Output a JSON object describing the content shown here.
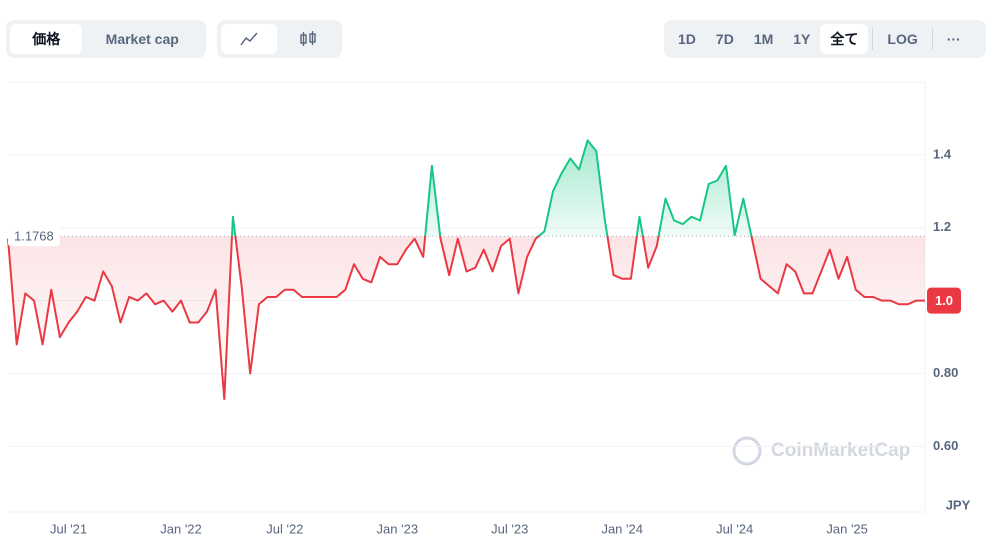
{
  "toolbar": {
    "metric_tabs": [
      "価格",
      "Market cap"
    ],
    "range_tabs": [
      "1D",
      "7D",
      "1M",
      "1Y",
      "全て"
    ],
    "log": "LOG",
    "more": "···"
  },
  "chart_data": {
    "type": "line",
    "y_axis_label": "JPY",
    "watermark": "CoinMarketCap",
    "categories": [
      "",
      null,
      null,
      null,
      null,
      null,
      null,
      "Jul '21",
      null,
      null,
      null,
      null,
      null,
      null,
      null,
      null,
      null,
      null,
      null,
      null,
      "Jan '22",
      null,
      null,
      null,
      null,
      null,
      null,
      null,
      null,
      null,
      null,
      null,
      "Jul '22",
      null,
      null,
      null,
      null,
      null,
      null,
      null,
      null,
      null,
      null,
      null,
      null,
      "Jan '23",
      null,
      null,
      null,
      null,
      null,
      null,
      null,
      null,
      null,
      null,
      null,
      null,
      "Jul '23",
      null,
      null,
      null,
      null,
      null,
      null,
      null,
      null,
      null,
      null,
      null,
      null,
      "Jan '24",
      null,
      null,
      null,
      null,
      null,
      null,
      null,
      null,
      null,
      null,
      null,
      null,
      "Jul '24",
      null,
      null,
      null,
      null,
      null,
      null,
      null,
      null,
      null,
      null,
      null,
      null,
      "Jan '25",
      null,
      null,
      null,
      null,
      null,
      null,
      null,
      null,
      null
    ],
    "series": [
      {
        "name": "Price",
        "values": [
          1.17,
          0.88,
          1.02,
          1.0,
          0.88,
          1.03,
          0.9,
          0.94,
          0.97,
          1.01,
          1.0,
          1.08,
          1.04,
          0.94,
          1.01,
          1.0,
          1.02,
          0.99,
          1.0,
          0.97,
          1.0,
          0.94,
          0.94,
          0.97,
          1.03,
          0.73,
          1.23,
          1.04,
          0.8,
          0.99,
          1.01,
          1.01,
          1.03,
          1.03,
          1.01,
          1.01,
          1.01,
          1.01,
          1.01,
          1.03,
          1.1,
          1.06,
          1.05,
          1.12,
          1.1,
          1.1,
          1.14,
          1.17,
          1.12,
          1.37,
          1.17,
          1.07,
          1.17,
          1.08,
          1.09,
          1.14,
          1.08,
          1.15,
          1.17,
          1.02,
          1.12,
          1.17,
          1.19,
          1.3,
          1.35,
          1.39,
          1.36,
          1.44,
          1.41,
          1.22,
          1.07,
          1.06,
          1.06,
          1.23,
          1.09,
          1.15,
          1.28,
          1.22,
          1.21,
          1.23,
          1.22,
          1.32,
          1.33,
          1.37,
          1.18,
          1.28,
          1.17,
          1.06,
          1.04,
          1.02,
          1.1,
          1.08,
          1.02,
          1.02,
          1.08,
          1.14,
          1.06,
          1.12,
          1.03,
          1.01,
          1.01,
          1.0,
          1.0,
          0.99,
          0.99,
          1.0,
          1.0
        ]
      }
    ],
    "baseline": 1.1768,
    "current_price": {
      "value": 1.0,
      "label": "1.0"
    },
    "up_color": "#16c784",
    "down_color": "#ea3943",
    "ylim": [
      0.42,
      1.6
    ],
    "yticks": [
      {
        "value": 0.6,
        "label": "0.60"
      },
      {
        "value": 0.8,
        "label": "0.80"
      },
      {
        "value": 1.0,
        "label": "1.0"
      },
      1.2,
      1.4
    ],
    "grid": true
  }
}
